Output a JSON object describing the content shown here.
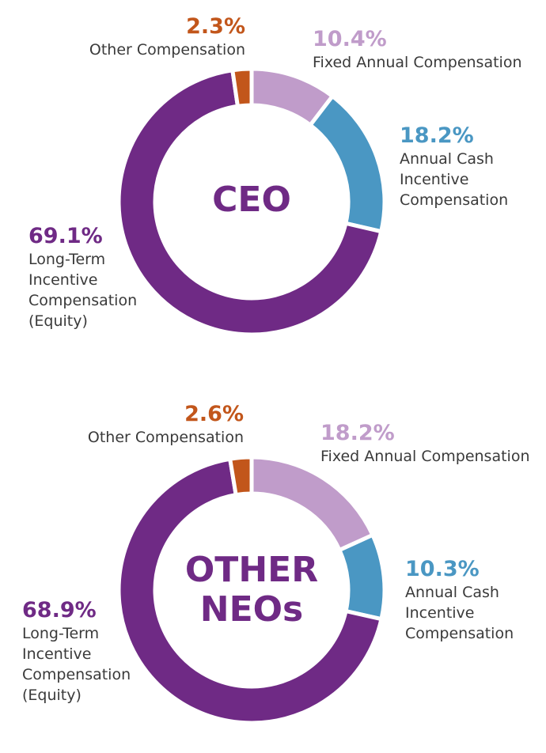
{
  "chart_data": [
    {
      "type": "pie",
      "title": "CEO",
      "center_label": "CEO",
      "series": [
        {
          "name": "Fixed Annual Compensation",
          "label": "Fixed Annual Compensation",
          "percent_text": "10.4%",
          "value": 10.4,
          "color": "#c09cca"
        },
        {
          "name": "Annual Cash Incentive Compensation",
          "label": "Annual Cash\nIncentive\nCompensation",
          "percent_text": "18.2%",
          "value": 18.2,
          "color": "#4a97c3"
        },
        {
          "name": "Long-Term Incentive Compensation (Equity)",
          "label": "Long-Term\nIncentive\nCompensation\n(Equity)",
          "percent_text": "69.1%",
          "value": 69.1,
          "color": "#6f2a85"
        },
        {
          "name": "Other Compensation",
          "label": "Other Compensation",
          "percent_text": "2.3%",
          "value": 2.3,
          "color": "#c2561b"
        }
      ]
    },
    {
      "type": "pie",
      "title": "OTHER NEOs",
      "center_label": "OTHER\nNEOs",
      "series": [
        {
          "name": "Fixed Annual Compensation",
          "label": "Fixed Annual Compensation",
          "percent_text": "18.2%",
          "value": 18.2,
          "color": "#c09cca"
        },
        {
          "name": "Annual Cash Incentive Compensation",
          "label": "Annual Cash\nIncentive\nCompensation",
          "percent_text": "10.3%",
          "value": 10.3,
          "color": "#4a97c3"
        },
        {
          "name": "Long-Term Incentive Compensation (Equity)",
          "label": "Long-Term\nIncentive\nCompensation\n(Equity)",
          "percent_text": "68.9%",
          "value": 68.9,
          "color": "#6f2a85"
        },
        {
          "name": "Other Compensation",
          "label": "Other Compensation",
          "percent_text": "2.6%",
          "value": 2.6,
          "color": "#c2561b"
        }
      ]
    }
  ]
}
